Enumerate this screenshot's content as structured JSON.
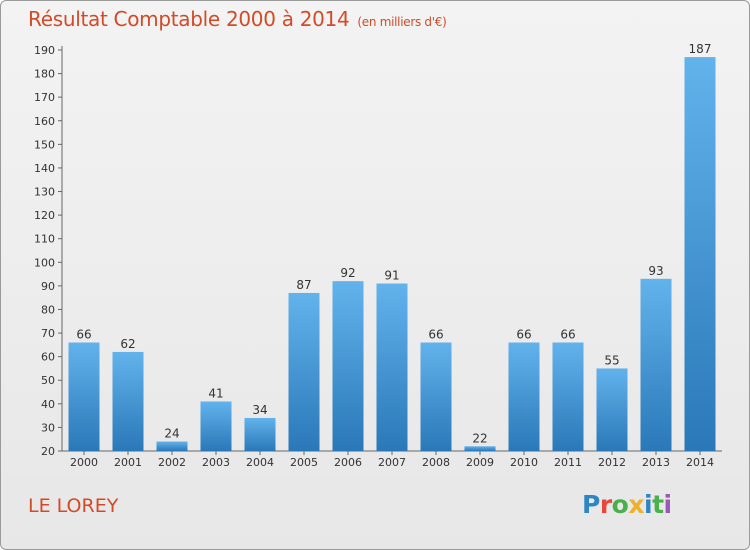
{
  "header": {
    "title": "Résultat Comptable 2000 à 2014",
    "unit": "(en milliers d'€)"
  },
  "footer": {
    "commune": "LE LOREY",
    "logo": "Proxiti",
    "logo_letters": [
      "P",
      "r",
      "o",
      "x",
      "i",
      "t",
      "i"
    ]
  },
  "colors": {
    "title": "#d24b28",
    "bar_light": "#62b3ec",
    "bar_dark": "#2a78b8",
    "axis": "#555555"
  },
  "chart_data": {
    "type": "bar",
    "title": "Résultat Comptable 2000 à 2014",
    "subtitle": "(en milliers d'€)",
    "xlabel": "",
    "ylabel": "",
    "categories": [
      "2000",
      "2001",
      "2002",
      "2003",
      "2004",
      "2005",
      "2006",
      "2007",
      "2008",
      "2009",
      "2010",
      "2011",
      "2012",
      "2013",
      "2014"
    ],
    "values": [
      66,
      62,
      24,
      41,
      34,
      87,
      92,
      91,
      66,
      22,
      66,
      66,
      55,
      93,
      187
    ],
    "ylim": [
      20,
      190
    ],
    "yticks": [
      20,
      30,
      40,
      50,
      60,
      70,
      80,
      90,
      100,
      110,
      120,
      130,
      140,
      150,
      160,
      170,
      180,
      190
    ],
    "grid": false,
    "data_labels": true
  }
}
